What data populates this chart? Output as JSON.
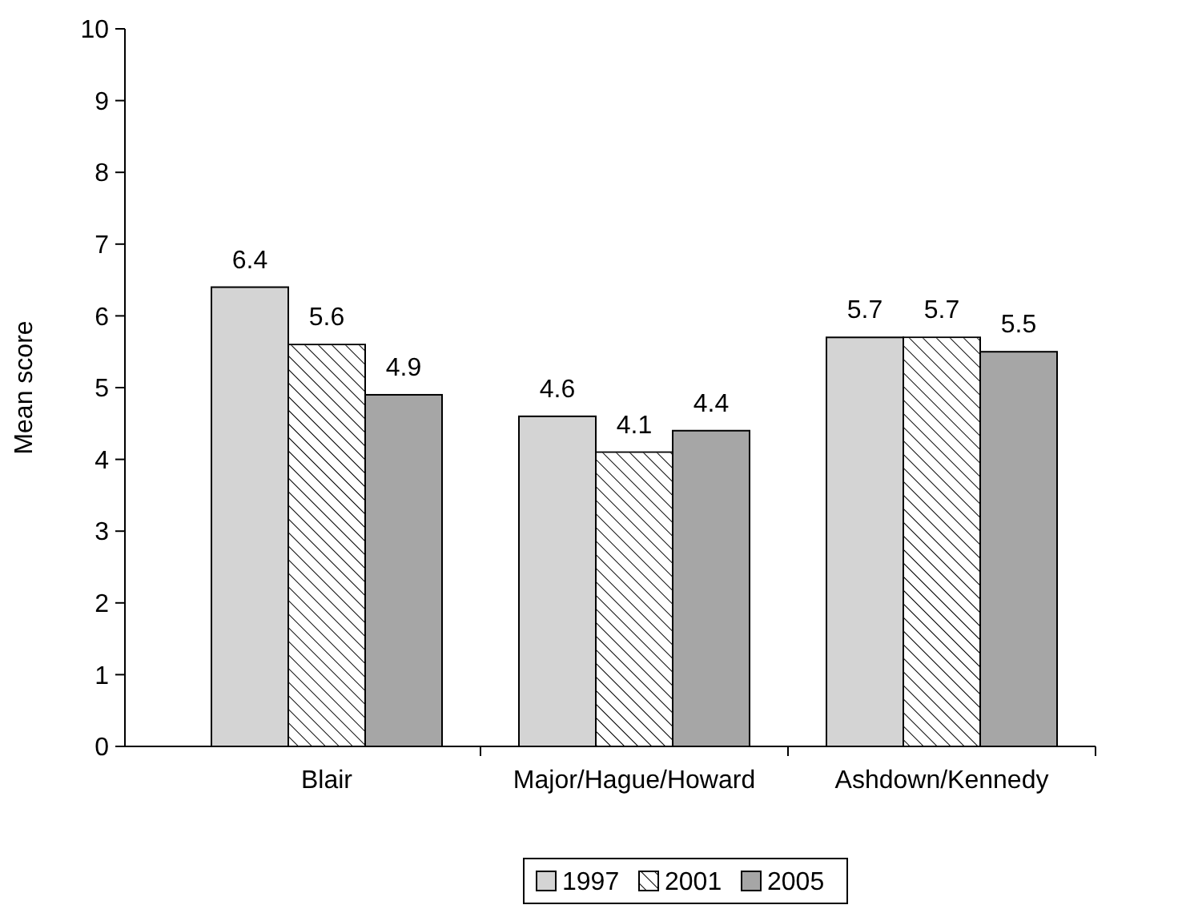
{
  "chart_data": {
    "type": "bar",
    "ylabel": "Mean score",
    "categories": [
      "Blair",
      "Major/Hague/Howard",
      "Ashdown/Kennedy"
    ],
    "series": [
      {
        "name": "1997",
        "color": "#d4d4d4",
        "values": [
          6.4,
          4.6,
          5.7
        ]
      },
      {
        "name": "2001",
        "color": "#ffffff",
        "values": [
          5.6,
          4.1,
          5.7
        ]
      },
      {
        "name": "2005",
        "color": "#a6a6a6",
        "values": [
          4.9,
          4.4,
          5.5
        ]
      }
    ],
    "ylim": [
      0,
      10
    ],
    "yticks": [
      0,
      1,
      2,
      3,
      4,
      5,
      6,
      7,
      8,
      9,
      10
    ],
    "grid": false,
    "legend": "bottom",
    "data_labels": true
  }
}
